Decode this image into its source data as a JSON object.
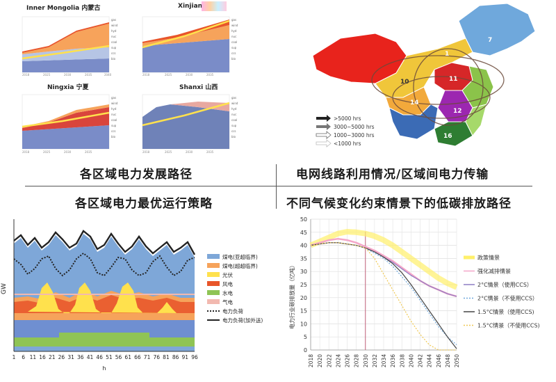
{
  "quadrant_titles": {
    "top_left": "各区域电力发展路径",
    "top_right": "电网线路利用情况/区域间电力传输",
    "bottom_left": "各区域电力最优运行策略",
    "bottom_right": "不同气候变化约束情景下的低碳排放路径"
  },
  "regional_panels": [
    {
      "title": "Inner Mongolia 内蒙古"
    },
    {
      "title": "Xinjiang"
    },
    {
      "title": "Ningxia 宁夏"
    },
    {
      "title": "Shanxi 山西"
    }
  ],
  "map": {
    "legend": [
      {
        "label": ">5000 hrs",
        "color": "#222222"
      },
      {
        "label": "3000~5000 hrs",
        "color": "#777777"
      },
      {
        "label": "1000~3000 hrs",
        "color": "#aaaaaa"
      },
      {
        "label": "<1000 hrs",
        "color": "#dddddd"
      }
    ],
    "region_numbers": [
      "1",
      "7",
      "10",
      "11",
      "12",
      "14",
      "16"
    ],
    "colors": {
      "northwest": "#e8231c",
      "north": "#f0c63a",
      "northeast": "#6fa8dc",
      "east": "#8bc34a",
      "central": "#9c27b0",
      "southwest": "#3b6bb5",
      "south": "#2e7d32"
    }
  },
  "chart_data": [
    {
      "type": "area",
      "title": "",
      "xlabel": "h",
      "ylabel": "GW",
      "x_ticks": [
        1,
        6,
        11,
        16,
        21,
        26,
        31,
        36,
        41,
        46,
        51,
        56,
        61,
        66,
        71,
        76,
        81,
        86,
        91,
        96
      ],
      "legend_placement": "right",
      "series": [
        {
          "name": "煤电(亚超临界)",
          "color": "#7ea7d8"
        },
        {
          "name": "煤电(超超临界)",
          "color": "#f6a35b"
        },
        {
          "name": "光伏",
          "color": "#ffe14d"
        },
        {
          "name": "风电",
          "color": "#e8552a"
        },
        {
          "name": "水电",
          "color": "#8fc455"
        },
        {
          "name": "气电",
          "color": "#f2b9b0"
        },
        {
          "name": "电力负荷",
          "color": "#222222",
          "style": "dotted"
        },
        {
          "name": "电力负荷(加外送)",
          "color": "#222222",
          "style": "solid"
        }
      ]
    },
    {
      "type": "line",
      "title": "",
      "xlabel": "",
      "ylabel": "电力行业碳排放量（亿吨）",
      "x": [
        2018,
        2020,
        2022,
        2024,
        2026,
        2028,
        2030,
        2032,
        2034,
        2036,
        2038,
        2040,
        2042,
        2044,
        2046,
        2048,
        2050
      ],
      "ylim": [
        0,
        50
      ],
      "y_ticks": [
        0,
        5,
        10,
        15,
        20,
        25,
        30,
        35,
        40,
        45,
        50
      ],
      "vertical_marker": 2030,
      "legend_placement": "right",
      "series": [
        {
          "name": "政策情景",
          "color": "#fff06a",
          "values": [
            40.0,
            41.5,
            43.0,
            44.5,
            45.2,
            45.0,
            44.5,
            43.5,
            42.0,
            40.0,
            37.5,
            35.0,
            32.5,
            30.0,
            27.5,
            25.5,
            24.0
          ]
        },
        {
          "name": "强化减排情景",
          "color": "#f4a6c8",
          "values": [
            40.0,
            41.0,
            42.0,
            42.5,
            42.0,
            41.0,
            39.5,
            38.0,
            36.0,
            34.0,
            31.5,
            29.0,
            26.5,
            24.5,
            23.0,
            21.5,
            20.5
          ]
        },
        {
          "name": "2°C情景（使用CCS）",
          "color": "#8e7cc3",
          "values": [
            40.0,
            40.5,
            41.0,
            41.0,
            40.5,
            40.0,
            39.0,
            37.5,
            35.5,
            33.5,
            31.0,
            28.5,
            26.5,
            24.5,
            23.0,
            21.5,
            20.5
          ]
        },
        {
          "name": "2°C情景（不使用CCS）",
          "color": "#6fa8dc",
          "values": [
            40.0,
            40.5,
            41.0,
            41.0,
            40.5,
            40.0,
            39.0,
            37.0,
            35.0,
            32.0,
            28.0,
            24.0,
            19.0,
            14.0,
            9.0,
            5.0,
            2.0
          ]
        },
        {
          "name": "1.5°C情景（使用CCS)",
          "color": "#444444",
          "values": [
            40.0,
            40.5,
            41.0,
            41.0,
            40.5,
            40.0,
            39.0,
            37.5,
            35.5,
            33.0,
            29.5,
            25.0,
            20.0,
            15.0,
            10.0,
            5.0,
            0.5
          ]
        },
        {
          "name": "1.5°C情景（不使用CCS)",
          "color": "#f0c850",
          "values": [
            40.0,
            40.5,
            41.0,
            41.0,
            40.5,
            40.0,
            39.0,
            35.0,
            29.0,
            23.0,
            17.0,
            11.0,
            6.0,
            2.0,
            0.0,
            0.0,
            0.0
          ]
        }
      ]
    }
  ]
}
